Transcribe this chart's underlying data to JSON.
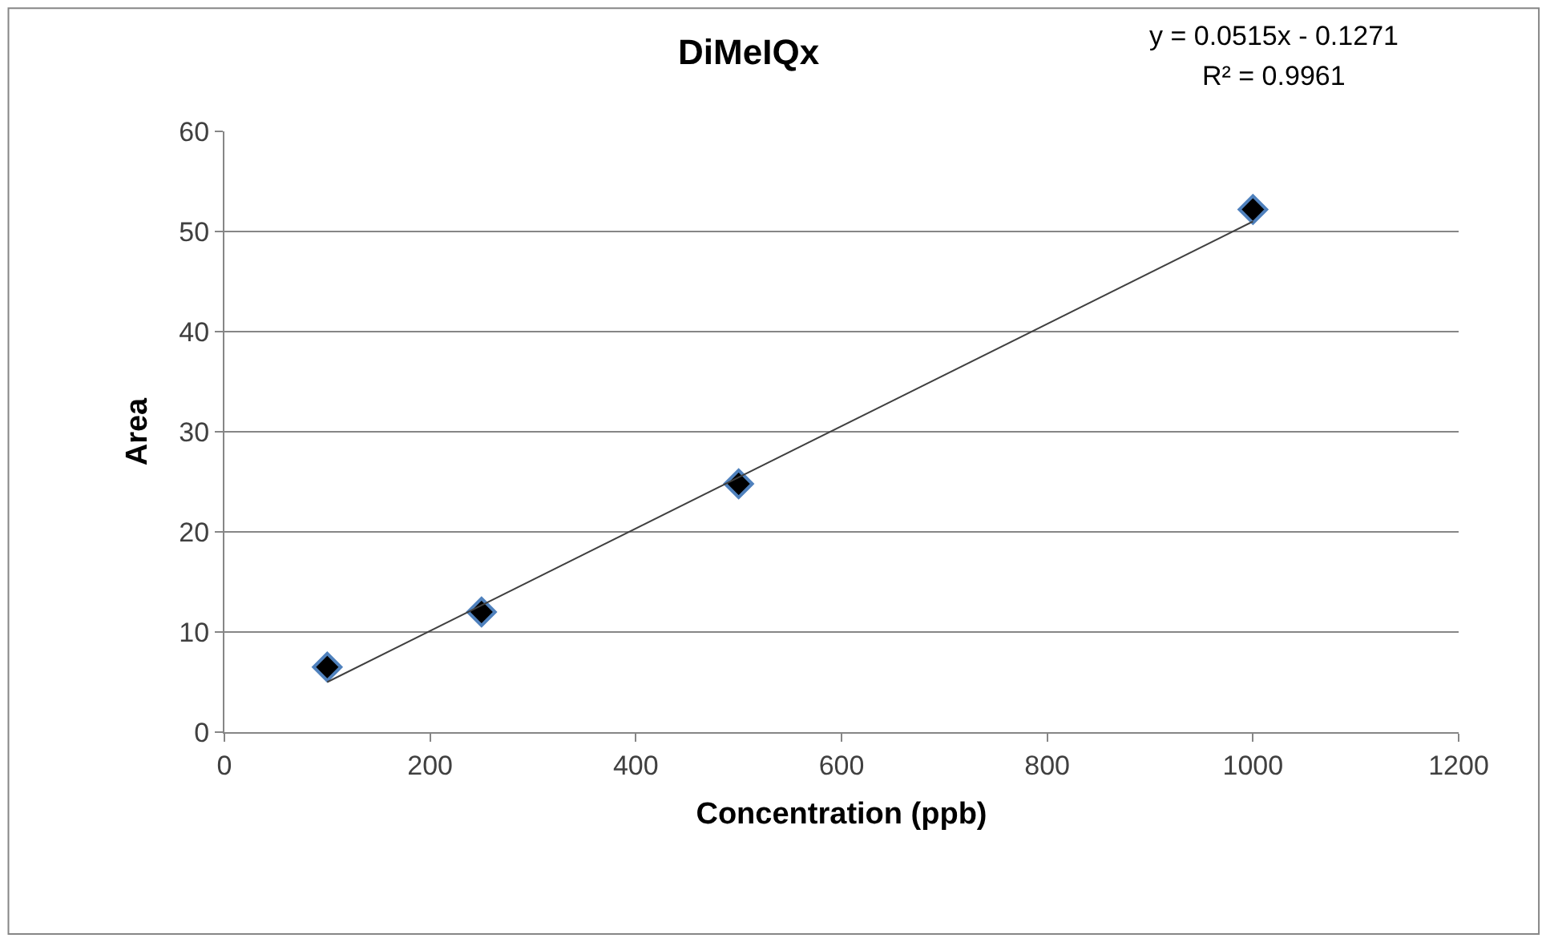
{
  "chart_data": {
    "type": "scatter",
    "title": "DiMeIQx",
    "xlabel": "Concentration (ppb)",
    "ylabel": "Area",
    "annotations": [
      "y = 0.0515x - 0.1271",
      "R² = 0.9961"
    ],
    "series": [
      {
        "color": "#000000",
        "x": [
          100,
          250,
          500,
          1000
        ],
        "values": [
          6.5,
          12,
          24.8,
          52.2
        ],
        "marker": "diamond"
      },
      {
        "type": "line",
        "color": "#404040",
        "x": [
          100,
          1000
        ],
        "values": [
          5.0,
          51.0
        ],
        "marker": "none",
        "line_style": "solid"
      }
    ],
    "xlim": [
      0,
      1200
    ],
    "xticks": [
      0,
      200,
      400,
      600,
      800,
      1000,
      1200
    ],
    "ylim": [
      0,
      60
    ],
    "yticks": [
      0,
      10,
      20,
      30,
      40,
      50,
      60
    ],
    "grid": "y"
  }
}
